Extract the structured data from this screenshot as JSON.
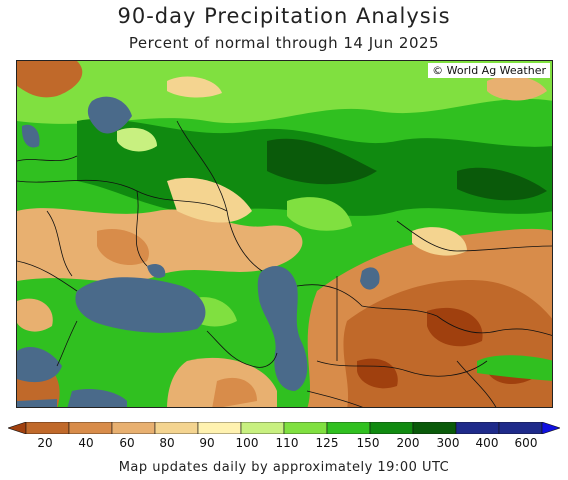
{
  "header": {
    "title": "90-day Precipitation Analysis",
    "subtitle": "Percent of normal through 14 Jun 2025"
  },
  "map": {
    "credit": "© World Ag Weather"
  },
  "legend": {
    "labels": [
      "20",
      "40",
      "60",
      "80",
      "90",
      "100",
      "110",
      "125",
      "150",
      "200",
      "300",
      "400",
      "600"
    ],
    "colors": [
      "#a0400e",
      "#c0692a",
      "#d88c4a",
      "#e8b070",
      "#f4d490",
      "#fff2b0",
      "#c8f080",
      "#80e040",
      "#30c020",
      "#108a10",
      "#0a5a0a",
      "#1e2a8a",
      "#1010e0"
    ]
  },
  "footer": {
    "text": "Map updates daily by approximately 19:00 UTC"
  }
}
